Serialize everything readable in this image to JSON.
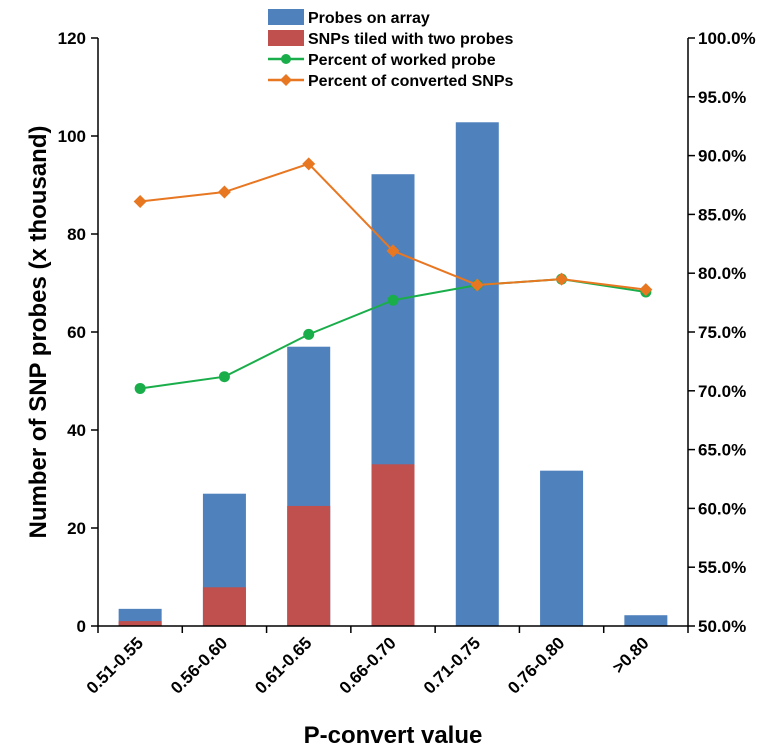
{
  "chart_data": {
    "type": "bar",
    "categories": [
      "0.51-0.55",
      "0.56-0.60",
      "0.61-0.65",
      "0.66-0.70",
      "0.71-0.75",
      "0.76-0.80",
      ">0.80"
    ],
    "series": [
      {
        "name": "Probes on array",
        "type": "bar",
        "axis": "left",
        "color": "#4F81BD",
        "values": [
          3.5,
          27,
          57,
          92.2,
          102.8,
          31.7,
          2.2
        ]
      },
      {
        "name": "SNPs tiled with two probes",
        "type": "bar",
        "axis": "left",
        "color": "#C0504D",
        "values": [
          1,
          7.9,
          24.5,
          33,
          0,
          0,
          0
        ]
      },
      {
        "name": "Percent of worked probe",
        "type": "line",
        "axis": "right",
        "color": "#1AAE4B",
        "marker": "circle",
        "values": [
          70.2,
          71.2,
          74.8,
          77.7,
          79.0,
          79.5,
          78.4
        ]
      },
      {
        "name": "Percent of converted SNPs",
        "type": "line",
        "axis": "right",
        "color": "#E87722",
        "marker": "diamond",
        "values": [
          86.1,
          86.9,
          89.3,
          81.9,
          79.0,
          79.5,
          78.6
        ]
      }
    ],
    "xlabel": "P-convert value",
    "ylabel": "Number  of SNP probes (x thousand)",
    "ylim": [
      0,
      120
    ],
    "yticks": [
      "0",
      "20",
      "40",
      "60",
      "80",
      "100",
      "120"
    ],
    "y2lim": [
      50,
      100
    ],
    "y2ticks": [
      "50.0%",
      "55.0%",
      "60.0%",
      "65.0%",
      "70.0%",
      "75.0%",
      "80.0%",
      "85.0%",
      "90.0%",
      "95.0%",
      "100.0%"
    ],
    "legend_position": "top-center",
    "grid": false
  }
}
